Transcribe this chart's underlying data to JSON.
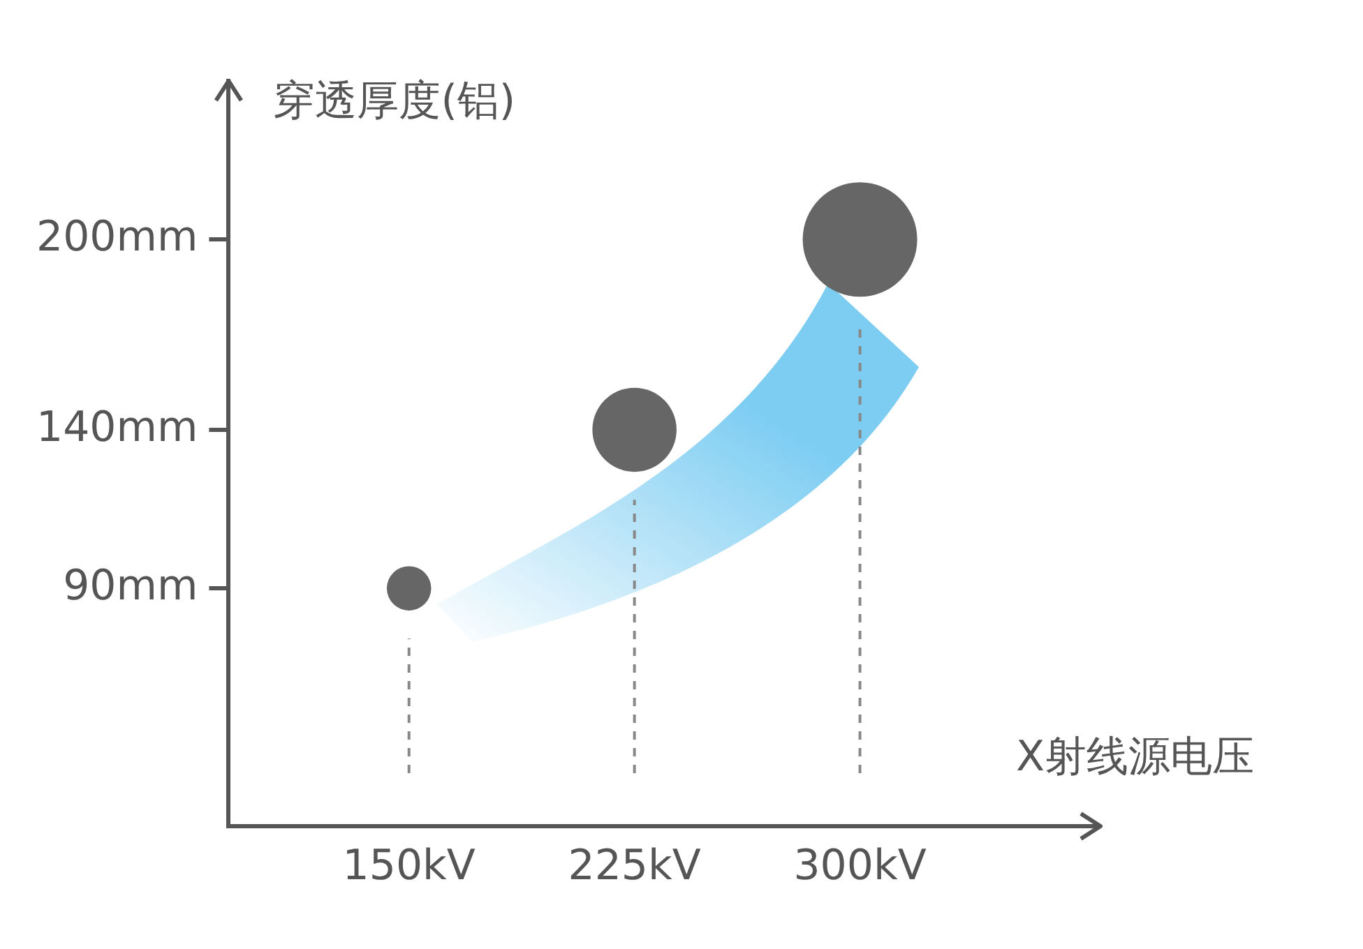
{
  "chart_data": {
    "type": "bubble",
    "xlabel": "X射线源电压",
    "ylabel": "穿透厚度(铝)",
    "x": [
      150,
      225,
      300
    ],
    "series": [
      {
        "color": "#666666",
        "values": [
          90,
          140,
          200
        ],
        "sizes": [
          0.15,
          0.54,
          1
        ]
      }
    ],
    "xlim": [
      90,
      380
    ],
    "ylim": [
      15,
      250
    ],
    "xticks": [
      {
        "value": 150,
        "label": "150kV"
      },
      {
        "value": 225,
        "label": "225kV"
      },
      {
        "value": 300,
        "label": "300kV"
      }
    ],
    "yticks": [
      {
        "value": 90,
        "label": "90mm"
      },
      {
        "value": 140,
        "label": "140mm"
      },
      {
        "value": 200,
        "label": "200mm"
      }
    ],
    "ref_lines": [
      {
        "axis": "x",
        "value": 150,
        "line_style": "dashed",
        "color": "#888888"
      },
      {
        "axis": "x",
        "value": 225,
        "line_style": "dashed",
        "color": "#888888"
      },
      {
        "axis": "x",
        "value": 300,
        "line_style": "dashed",
        "color": "#888888"
      }
    ],
    "grid": false,
    "legend": false
  }
}
